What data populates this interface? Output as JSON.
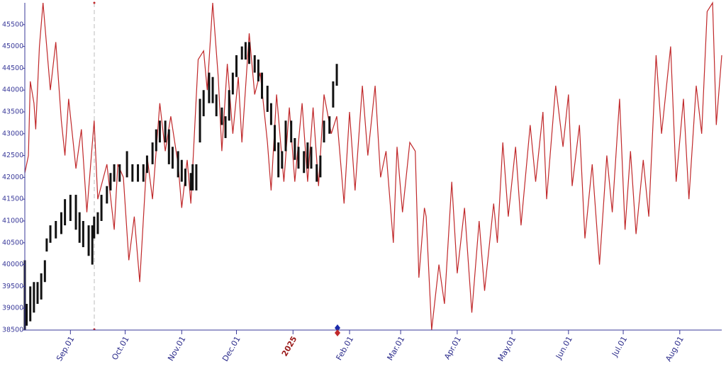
{
  "chart_data": {
    "type": "combo",
    "xlim": [
      "2024-08-07",
      "2025-08-24"
    ],
    "ylim": [
      38500,
      46000
    ],
    "yticks": [
      38500,
      39000,
      39500,
      40000,
      40500,
      41000,
      41500,
      42000,
      42500,
      43000,
      43500,
      44000,
      44500,
      45000,
      45500
    ],
    "xticks": [
      {
        "value": "2024-09-01",
        "label": "Sep.01"
      },
      {
        "value": "2024-10-01",
        "label": "Oct.01"
      },
      {
        "value": "2024-11-01",
        "label": "Nov.01"
      },
      {
        "value": "2024-12-01",
        "label": "Dec.01"
      },
      {
        "value": "2025-01-01",
        "label": "2025"
      },
      {
        "value": "2025-02-01",
        "label": "Feb.01"
      },
      {
        "value": "2025-03-01",
        "label": "Mar.01"
      },
      {
        "value": "2025-04-01",
        "label": "Apr.01"
      },
      {
        "value": "2025-05-01",
        "label": "May.01"
      },
      {
        "value": "2025-06-01",
        "label": "Jun.01"
      },
      {
        "value": "2025-07-01",
        "label": "Jul.01"
      },
      {
        "value": "2025-08-01",
        "label": "Aug.01"
      }
    ],
    "series": [
      {
        "type": "line",
        "color": "#c0282a",
        "x": [
          "2024-08-07",
          "2024-08-09",
          "2024-08-10",
          "2024-08-12",
          "2024-08-13",
          "2024-08-15",
          "2024-08-17",
          "2024-08-21",
          "2024-08-24",
          "2024-08-27",
          "2024-08-29",
          "2024-08-31",
          "2024-09-04",
          "2024-09-07",
          "2024-09-10",
          "2024-09-14",
          "2024-09-16",
          "2024-09-21",
          "2024-09-25",
          "2024-09-27",
          "2024-09-30",
          "2024-10-03",
          "2024-10-06",
          "2024-10-09",
          "2024-10-13",
          "2024-10-16",
          "2024-10-20",
          "2024-10-23",
          "2024-10-26",
          "2024-10-30",
          "2024-11-01",
          "2024-11-04",
          "2024-11-06",
          "2024-11-10",
          "2024-11-13",
          "2024-11-15",
          "2024-11-18",
          "2024-11-21",
          "2024-11-23",
          "2024-11-26",
          "2024-11-29",
          "2024-12-02",
          "2024-12-04",
          "2024-12-08",
          "2024-12-11",
          "2024-12-14",
          "2024-12-18",
          "2024-12-20",
          "2024-12-23",
          "2024-12-27",
          "2024-12-30",
          "2025-01-02",
          "2025-01-06",
          "2025-01-09",
          "2025-01-12",
          "2025-01-15",
          "2025-01-18",
          "2025-01-22",
          "2025-01-25",
          "2025-01-29",
          "2025-02-01",
          "2025-02-04",
          "2025-02-08",
          "2025-02-11",
          "2025-02-15",
          "2025-02-18",
          "2025-02-21",
          "2025-02-25",
          "2025-02-27",
          "2025-03-02",
          "2025-03-06",
          "2025-03-09",
          "2025-03-11",
          "2025-03-14",
          "2025-03-15",
          "2025-03-18",
          "2025-03-22",
          "2025-03-25",
          "2025-03-29",
          "2025-04-01",
          "2025-04-05",
          "2025-04-09",
          "2025-04-13",
          "2025-04-16",
          "2025-04-21",
          "2025-04-23",
          "2025-04-26",
          "2025-04-29",
          "2025-05-03",
          "2025-05-06",
          "2025-05-11",
          "2025-05-14",
          "2025-05-18",
          "2025-05-20",
          "2025-05-25",
          "2025-05-29",
          "2025-06-01",
          "2025-06-03",
          "2025-06-07",
          "2025-06-10",
          "2025-06-14",
          "2025-06-18",
          "2025-06-22",
          "2025-06-25",
          "2025-06-29",
          "2025-07-02",
          "2025-07-05",
          "2025-07-08",
          "2025-07-12",
          "2025-07-15",
          "2025-07-19",
          "2025-07-22",
          "2025-07-27",
          "2025-07-30",
          "2025-08-03",
          "2025-08-06",
          "2025-08-10",
          "2025-08-13",
          "2025-08-16",
          "2025-08-19",
          "2025-08-21",
          "2025-08-24"
        ],
        "values": [
          42100,
          42500,
          44200,
          43700,
          43100,
          45000,
          46000,
          44000,
          45100,
          43300,
          42500,
          43800,
          42200,
          43100,
          41200,
          43300,
          41500,
          42300,
          40800,
          42300,
          42000,
          40100,
          41100,
          39600,
          42500,
          41500,
          43700,
          42600,
          43400,
          42300,
          41300,
          42400,
          41400,
          44700,
          44900,
          44000,
          46000,
          44300,
          42600,
          44600,
          43000,
          44300,
          42800,
          45300,
          43900,
          44400,
          42800,
          41700,
          43900,
          41900,
          43600,
          41900,
          43700,
          41900,
          43600,
          41800,
          43900,
          43000,
          43400,
          41400,
          43500,
          41700,
          44100,
          42500,
          44100,
          42000,
          42600,
          40500,
          42700,
          41200,
          42800,
          42600,
          39700,
          41300,
          41100,
          38500,
          40000,
          39100,
          41900,
          39800,
          41300,
          38900,
          41000,
          39400,
          41400,
          40500,
          42800,
          41100,
          42700,
          40900,
          43200,
          41900,
          43500,
          41500,
          44100,
          42700,
          43900,
          41800,
          43200,
          40600,
          42300,
          40000,
          42500,
          41200,
          43800,
          40800,
          42600,
          40700,
          42400,
          41100,
          44800,
          43000,
          45000,
          41900,
          43800,
          41500,
          44100,
          43000,
          45800,
          46000,
          43200,
          44800
        ]
      },
      {
        "type": "range",
        "color": "#111111",
        "x": [
          "2024-08-07",
          "2024-08-08",
          "2024-08-10",
          "2024-08-12",
          "2024-08-14",
          "2024-08-16",
          "2024-08-18",
          "2024-08-19",
          "2024-08-21",
          "2024-08-24",
          "2024-08-27",
          "2024-08-29",
          "2024-09-01",
          "2024-09-04",
          "2024-09-06",
          "2024-09-08",
          "2024-09-11",
          "2024-09-13",
          "2024-09-14",
          "2024-09-16",
          "2024-09-18",
          "2024-09-21",
          "2024-09-23",
          "2024-09-25",
          "2024-09-28",
          "2024-10-02",
          "2024-10-05",
          "2024-10-08",
          "2024-10-11",
          "2024-10-13",
          "2024-10-16",
          "2024-10-18",
          "2024-10-20",
          "2024-10-23",
          "2024-10-25",
          "2024-10-27",
          "2024-10-30",
          "2024-11-01",
          "2024-11-03",
          "2024-11-06",
          "2024-11-07",
          "2024-11-09",
          "2024-11-11",
          "2024-11-13",
          "2024-11-16",
          "2024-11-18",
          "2024-11-20",
          "2024-11-23",
          "2024-11-25",
          "2024-11-27",
          "2024-11-29",
          "2024-12-01",
          "2024-12-04",
          "2024-12-06",
          "2024-12-08",
          "2024-12-11",
          "2024-12-13",
          "2024-12-15",
          "2024-12-18",
          "2024-12-20",
          "2024-12-22",
          "2024-12-24",
          "2024-12-26",
          "2024-12-28",
          "2024-12-31",
          "2025-01-02",
          "2025-01-04",
          "2025-01-07",
          "2025-01-09",
          "2025-01-11",
          "2025-01-14",
          "2025-01-16",
          "2025-01-18",
          "2025-01-21",
          "2025-01-23",
          "2025-01-25"
        ],
        "high": [
          40100,
          39100,
          39500,
          39600,
          39600,
          39800,
          40100,
          40600,
          40900,
          41000,
          41200,
          41500,
          41600,
          41600,
          41200,
          41000,
          40900,
          40900,
          41100,
          41200,
          41600,
          41800,
          42100,
          42300,
          42300,
          42600,
          42300,
          42300,
          42300,
          42500,
          42800,
          43100,
          43300,
          43300,
          43100,
          42700,
          42600,
          42400,
          42200,
          42100,
          42300,
          42300,
          43800,
          44000,
          44400,
          44300,
          43900,
          43600,
          43400,
          44000,
          44400,
          44800,
          45000,
          45100,
          45100,
          44800,
          44700,
          44400,
          44100,
          43700,
          43200,
          42800,
          42600,
          43300,
          43300,
          42900,
          42700,
          42600,
          42800,
          42700,
          42300,
          42500,
          43300,
          43400,
          44200,
          44600
        ],
        "low": [
          38500,
          38600,
          38700,
          38900,
          39100,
          39200,
          39600,
          40300,
          40500,
          40600,
          40700,
          40900,
          41000,
          40800,
          40500,
          40400,
          40200,
          40000,
          40600,
          40700,
          41000,
          41400,
          41700,
          41900,
          41900,
          42000,
          41900,
          41900,
          41900,
          42100,
          42300,
          42600,
          42800,
          42800,
          42300,
          42200,
          42000,
          41900,
          41800,
          41700,
          41700,
          41700,
          42800,
          43400,
          43700,
          43700,
          43400,
          43200,
          42900,
          43300,
          43900,
          44300,
          44700,
          44700,
          44600,
          44400,
          44200,
          43800,
          43500,
          43200,
          42600,
          42000,
          42200,
          42600,
          42800,
          42400,
          42200,
          42100,
          42200,
          42200,
          41900,
          42000,
          42800,
          43000,
          43600,
          44100
        ]
      }
    ]
  }
}
